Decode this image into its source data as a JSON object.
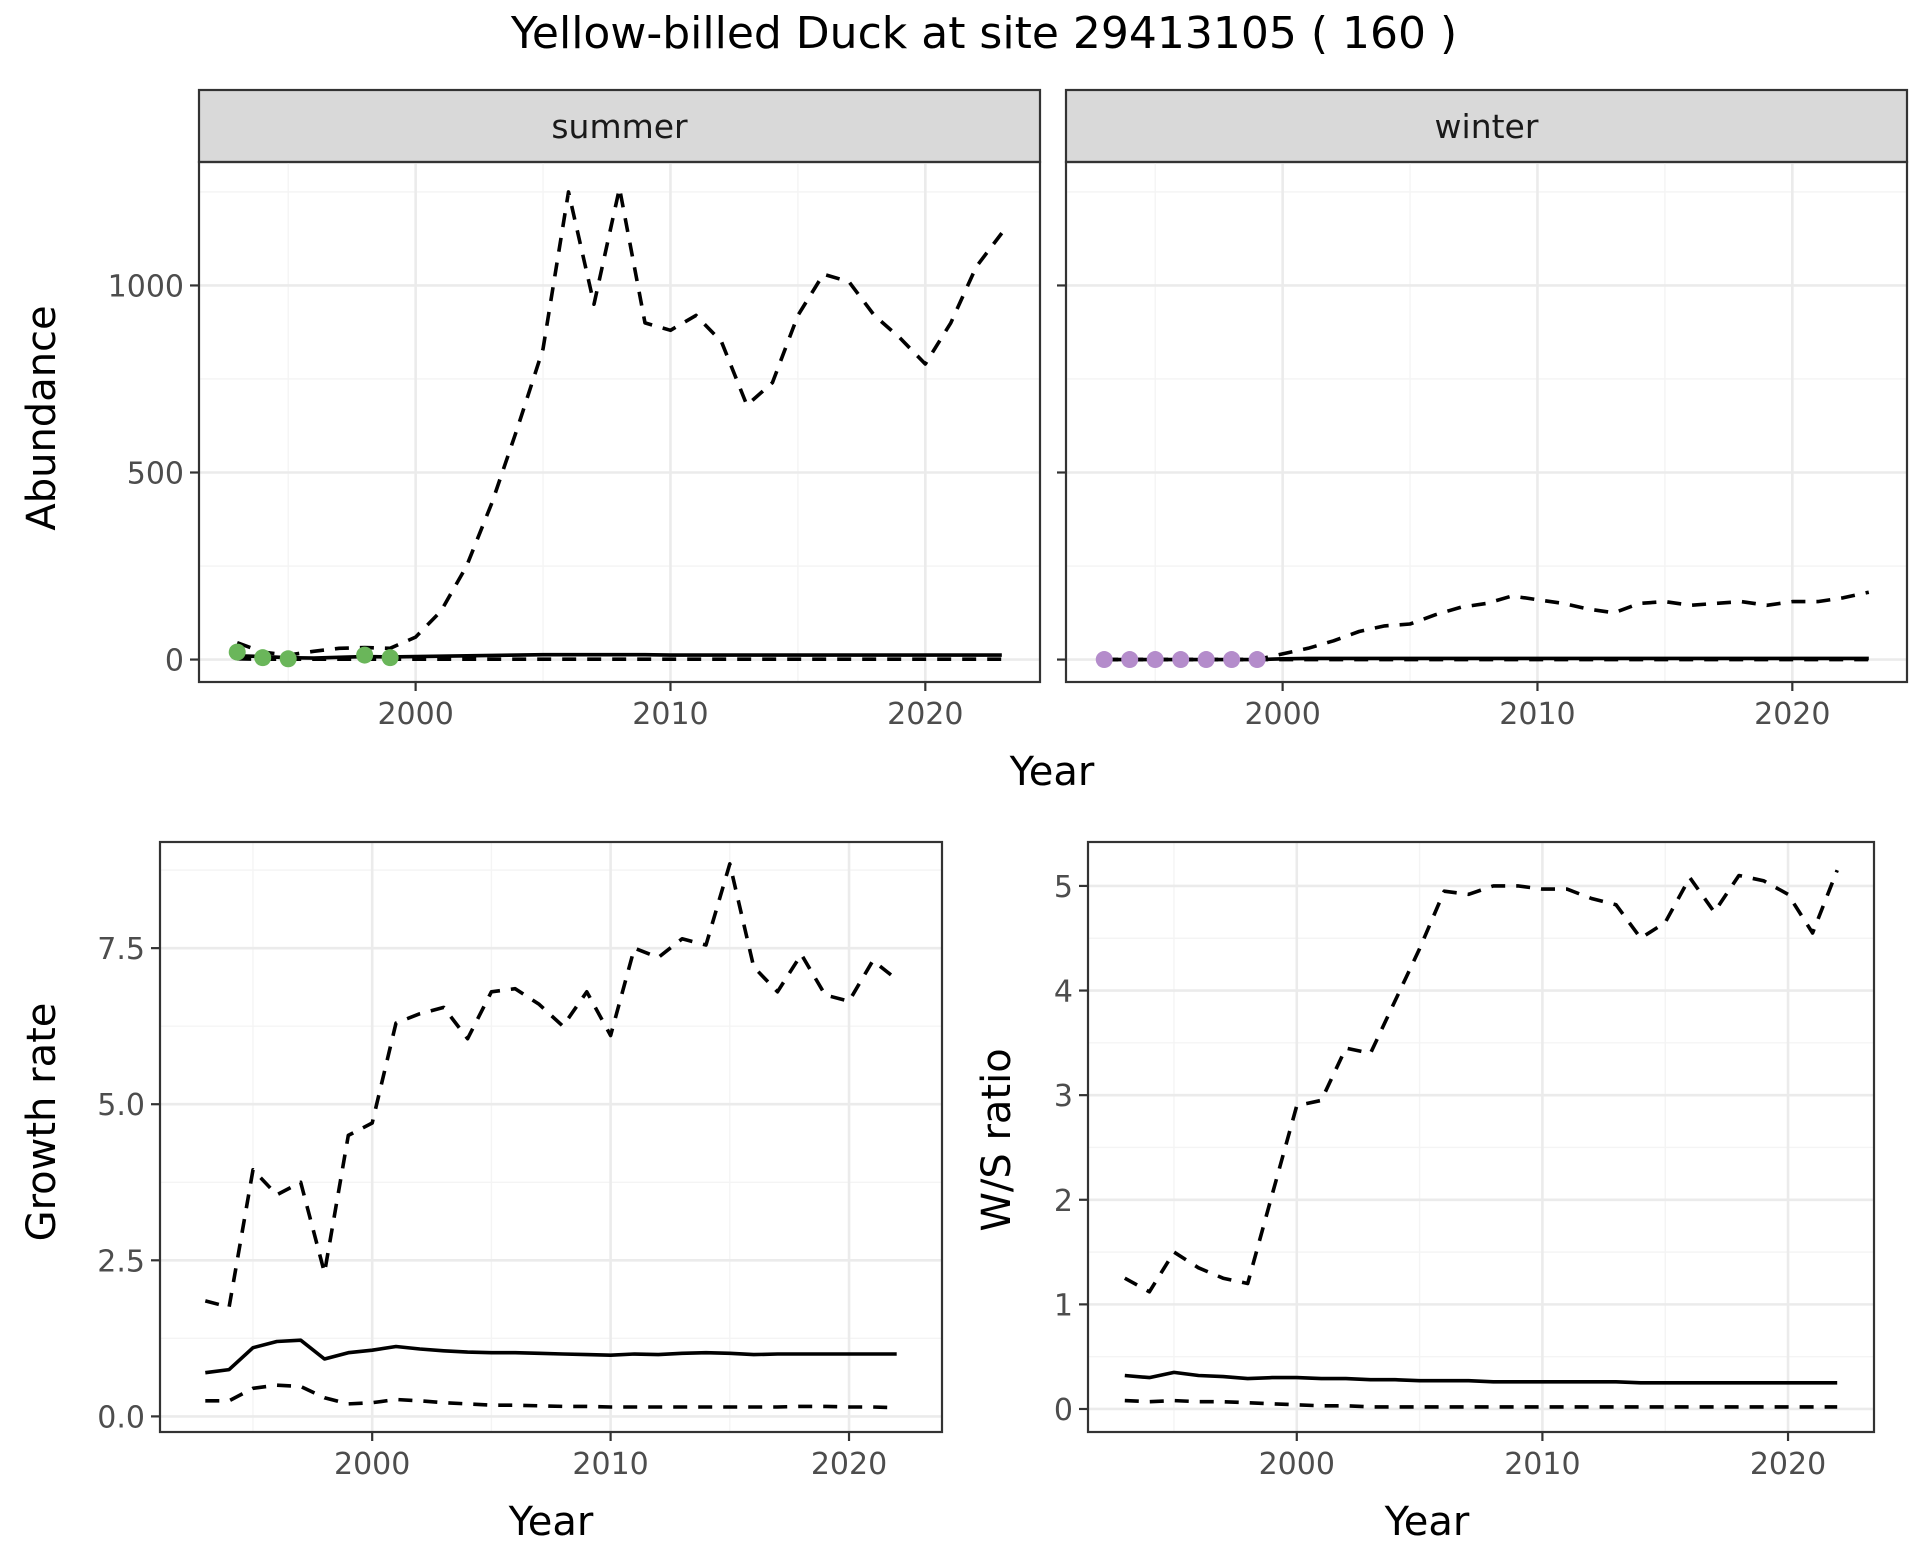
{
  "title": "Yellow-billed Duck at site 29413105 ( 160 )",
  "colors": {
    "summer_points": "#6ab65a",
    "winter_points": "#b48ccb"
  },
  "chart_data": [
    {
      "id": "abundance-summer",
      "type": "line",
      "strip": "summer",
      "ylabel": "Abundance",
      "xlim": [
        1991.5,
        2024.5
      ],
      "ylim": [
        -60,
        1330
      ],
      "xticks": [
        2000,
        2010,
        2020
      ],
      "yticks": [
        0,
        500,
        1000
      ],
      "ytick_labels": [
        "0",
        "500",
        "1000"
      ],
      "x": [
        1993,
        1994,
        1995,
        1996,
        1997,
        1998,
        1999,
        2000,
        2001,
        2002,
        2003,
        2004,
        2005,
        2006,
        2007,
        2008,
        2009,
        2010,
        2011,
        2012,
        2013,
        2014,
        2015,
        2016,
        2017,
        2018,
        2019,
        2020,
        2021,
        2022,
        2023
      ],
      "series": [
        {
          "style": "solid",
          "values": [
            10,
            8,
            5,
            4,
            6,
            8,
            7,
            8,
            9,
            10,
            11,
            12,
            13,
            13,
            13,
            13,
            13,
            12,
            12,
            12,
            12,
            12,
            12,
            12,
            12,
            12,
            12,
            12,
            12,
            12,
            12
          ]
        },
        {
          "style": "dashed",
          "values": [
            45,
            20,
            12,
            22,
            30,
            32,
            30,
            60,
            130,
            250,
            420,
            620,
            830,
            1250,
            950,
            1260,
            900,
            880,
            920,
            850,
            680,
            740,
            920,
            1030,
            1010,
            920,
            860,
            790,
            900,
            1050,
            1140
          ]
        },
        {
          "style": "dashed",
          "values": [
            2,
            1,
            1,
            1,
            1,
            1,
            1,
            1,
            1,
            1,
            1,
            1,
            1,
            1,
            1,
            1,
            1,
            1,
            1,
            1,
            1,
            1,
            1,
            1,
            1,
            1,
            1,
            1,
            1,
            1,
            1
          ]
        }
      ],
      "points": {
        "x": [
          1993,
          1994,
          1995,
          1998,
          1999
        ],
        "y": [
          20,
          5,
          2,
          12,
          5
        ]
      }
    },
    {
      "id": "abundance-winter",
      "type": "line",
      "strip": "winter",
      "ylabel": "",
      "xlim": [
        1991.5,
        2024.5
      ],
      "ylim": [
        -60,
        1330
      ],
      "xticks": [
        2000,
        2010,
        2020
      ],
      "yticks": [
        0,
        500,
        1000
      ],
      "x": [
        1993,
        1994,
        1995,
        1996,
        1997,
        1998,
        1999,
        2000,
        2001,
        2002,
        2003,
        2004,
        2005,
        2006,
        2007,
        2008,
        2009,
        2010,
        2011,
        2012,
        2013,
        2014,
        2015,
        2016,
        2017,
        2018,
        2019,
        2020,
        2021,
        2022,
        2023
      ],
      "series": [
        {
          "style": "solid",
          "values": [
            0,
            0,
            0,
            0,
            0,
            0,
            0,
            2,
            3,
            3,
            3,
            3,
            3,
            3,
            3,
            3,
            3,
            3,
            3,
            3,
            3,
            3,
            3,
            3,
            3,
            3,
            3,
            3,
            3,
            3,
            3
          ]
        },
        {
          "style": "dashed",
          "values": [
            0,
            0,
            0,
            0,
            0,
            0,
            0,
            15,
            30,
            50,
            75,
            90,
            95,
            120,
            140,
            150,
            170,
            160,
            150,
            135,
            125,
            150,
            155,
            145,
            150,
            155,
            145,
            155,
            155,
            165,
            180
          ]
        },
        {
          "style": "dashed",
          "values": [
            0,
            0,
            0,
            0,
            0,
            0,
            0,
            0,
            0,
            0,
            0,
            0,
            0,
            0,
            0,
            0,
            0,
            0,
            0,
            0,
            0,
            0,
            0,
            0,
            0,
            0,
            0,
            0,
            0,
            0,
            0
          ]
        }
      ],
      "points": {
        "x": [
          1993,
          1994,
          1995,
          1996,
          1997,
          1998,
          1999
        ],
        "y": [
          0,
          0,
          0,
          0,
          0,
          0,
          0
        ]
      }
    },
    {
      "id": "growth-rate",
      "type": "line",
      "ylabel": "Growth rate",
      "xlabel": "Year",
      "xlim": [
        1991.1,
        2023.9
      ],
      "ylim": [
        -0.25,
        9.2
      ],
      "xticks": [
        2000,
        2010,
        2020
      ],
      "yticks": [
        0,
        2.5,
        5,
        7.5
      ],
      "ytick_labels": [
        "0.0",
        "2.5",
        "5.0",
        "7.5"
      ],
      "x": [
        1993,
        1994,
        1995,
        1996,
        1997,
        1998,
        1999,
        2000,
        2001,
        2002,
        2003,
        2004,
        2005,
        2006,
        2007,
        2008,
        2009,
        2010,
        2011,
        2012,
        2013,
        2014,
        2015,
        2016,
        2017,
        2018,
        2019,
        2020,
        2021,
        2022
      ],
      "series": [
        {
          "style": "solid",
          "values": [
            0.7,
            0.75,
            1.1,
            1.2,
            1.22,
            0.92,
            1.02,
            1.06,
            1.12,
            1.08,
            1.05,
            1.03,
            1.02,
            1.02,
            1.01,
            1.0,
            0.99,
            0.98,
            1.0,
            0.99,
            1.01,
            1.02,
            1.01,
            0.99,
            1.0,
            1.0,
            1.0,
            1.0,
            1.0,
            1.0
          ]
        },
        {
          "style": "dashed",
          "values": [
            1.85,
            1.75,
            3.95,
            3.55,
            3.75,
            2.3,
            4.5,
            4.7,
            6.3,
            6.45,
            6.55,
            6.05,
            6.8,
            6.85,
            6.6,
            6.25,
            6.8,
            6.1,
            7.5,
            7.35,
            7.65,
            7.55,
            8.85,
            7.2,
            6.8,
            7.4,
            6.75,
            6.65,
            7.3,
            7.0
          ]
        },
        {
          "style": "dashed",
          "values": [
            0.25,
            0.25,
            0.45,
            0.5,
            0.48,
            0.3,
            0.2,
            0.22,
            0.27,
            0.25,
            0.22,
            0.2,
            0.18,
            0.18,
            0.17,
            0.16,
            0.16,
            0.15,
            0.15,
            0.15,
            0.15,
            0.15,
            0.15,
            0.15,
            0.15,
            0.16,
            0.16,
            0.15,
            0.15,
            0.14
          ]
        }
      ]
    },
    {
      "id": "ws-ratio",
      "type": "line",
      "ylabel": "W/S ratio",
      "xlabel": "Year",
      "xlim": [
        1991.5,
        2023.5
      ],
      "ylim": [
        -0.22,
        5.42
      ],
      "xticks": [
        2000,
        2010,
        2020
      ],
      "yticks": [
        0,
        1,
        2,
        3,
        4,
        5
      ],
      "ytick_labels": [
        "0",
        "1",
        "2",
        "3",
        "4",
        "5"
      ],
      "x": [
        1993,
        1994,
        1995,
        1996,
        1997,
        1998,
        1999,
        2000,
        2001,
        2002,
        2003,
        2004,
        2005,
        2006,
        2007,
        2008,
        2009,
        2010,
        2011,
        2012,
        2013,
        2014,
        2015,
        2016,
        2017,
        2018,
        2019,
        2020,
        2021,
        2022
      ],
      "series": [
        {
          "style": "solid",
          "values": [
            0.32,
            0.3,
            0.35,
            0.32,
            0.31,
            0.29,
            0.3,
            0.3,
            0.29,
            0.29,
            0.28,
            0.28,
            0.27,
            0.27,
            0.27,
            0.26,
            0.26,
            0.26,
            0.26,
            0.26,
            0.26,
            0.25,
            0.25,
            0.25,
            0.25,
            0.25,
            0.25,
            0.25,
            0.25,
            0.25
          ]
        },
        {
          "style": "dashed",
          "values": [
            1.25,
            1.12,
            1.5,
            1.35,
            1.25,
            1.2,
            2.05,
            2.9,
            2.95,
            3.45,
            3.4,
            3.9,
            4.4,
            4.95,
            4.92,
            5.0,
            5.0,
            4.97,
            4.97,
            4.88,
            4.82,
            4.5,
            4.65,
            5.08,
            4.75,
            5.1,
            5.05,
            4.92,
            4.55,
            5.15
          ]
        },
        {
          "style": "dashed",
          "values": [
            0.08,
            0.07,
            0.08,
            0.07,
            0.07,
            0.06,
            0.05,
            0.04,
            0.03,
            0.03,
            0.02,
            0.02,
            0.02,
            0.02,
            0.02,
            0.02,
            0.02,
            0.02,
            0.02,
            0.02,
            0.02,
            0.02,
            0.02,
            0.02,
            0.02,
            0.02,
            0.02,
            0.02,
            0.02,
            0.02
          ]
        }
      ]
    }
  ],
  "shared_xlabel_top": "Year",
  "xlabel_growth": "Year",
  "xlabel_ws": "Year"
}
